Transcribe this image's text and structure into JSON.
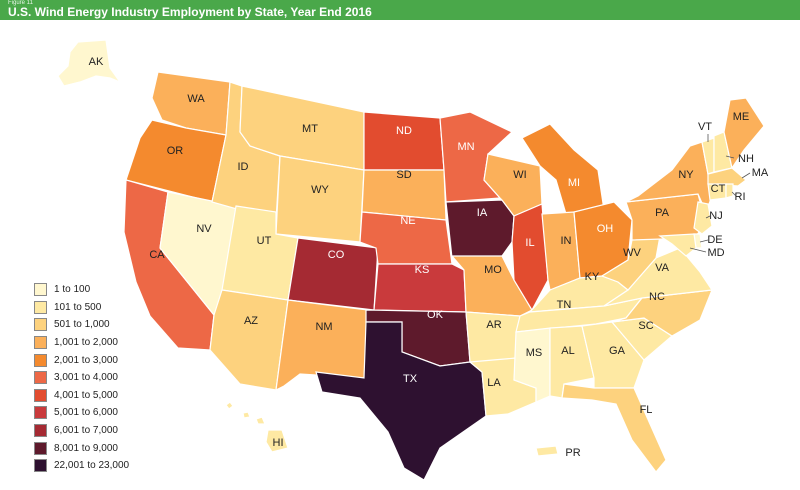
{
  "header": {
    "figure_label": "Figure 11",
    "title": "U.S. Wind Energy Industry Employment by State, Year End 2016"
  },
  "colors": {
    "header_bg": "#4aa84a",
    "background": "#ffffff",
    "state_stroke": "#ffffff"
  },
  "legend": [
    {
      "label": "1 to 100",
      "color": "#fff7cf"
    },
    {
      "label": "101 to 500",
      "color": "#fee9a3"
    },
    {
      "label": "501 to 1,000",
      "color": "#fdd27e"
    },
    {
      "label": "1,001 to 2,000",
      "color": "#fbb05a"
    },
    {
      "label": "2,001 to 3,000",
      "color": "#f48a2e"
    },
    {
      "label": "3,001 to 4,000",
      "color": "#ed6846"
    },
    {
      "label": "4,001 to 5,000",
      "color": "#e24c2f"
    },
    {
      "label": "5,001 to 6,000",
      "color": "#c93a3c"
    },
    {
      "label": "6,001 to 7,000",
      "color": "#a52a33"
    },
    {
      "label": "8,001 to 9,000",
      "color": "#5e1a2c"
    },
    {
      "label": "22,001 to 23,000",
      "color": "#2e1130"
    }
  ],
  "states": {
    "AK": {
      "label": "AK",
      "bin": 0
    },
    "WA": {
      "label": "WA",
      "bin": 3
    },
    "OR": {
      "label": "OR",
      "bin": 4
    },
    "CA": {
      "label": "CA",
      "bin": 5
    },
    "NV": {
      "label": "NV",
      "bin": 0
    },
    "ID": {
      "label": "ID",
      "bin": 2
    },
    "MT": {
      "label": "MT",
      "bin": 2
    },
    "WY": {
      "label": "WY",
      "bin": 2
    },
    "UT": {
      "label": "UT",
      "bin": 1
    },
    "AZ": {
      "label": "AZ",
      "bin": 2
    },
    "CO": {
      "label": "CO",
      "bin": 8
    },
    "NM": {
      "label": "NM",
      "bin": 3
    },
    "ND": {
      "label": "ND",
      "bin": 6
    },
    "SD": {
      "label": "SD",
      "bin": 3
    },
    "NE": {
      "label": "NE",
      "bin": 5
    },
    "KS": {
      "label": "KS",
      "bin": 7
    },
    "OK": {
      "label": "OK",
      "bin": 9
    },
    "TX": {
      "label": "TX",
      "bin": 10
    },
    "MN": {
      "label": "MN",
      "bin": 5
    },
    "IA": {
      "label": "IA",
      "bin": 9
    },
    "MO": {
      "label": "MO",
      "bin": 3
    },
    "AR": {
      "label": "AR",
      "bin": 1
    },
    "LA": {
      "label": "LA",
      "bin": 1
    },
    "WI": {
      "label": "WI",
      "bin": 3
    },
    "IL": {
      "label": "IL",
      "bin": 6
    },
    "MI": {
      "label": "MI",
      "bin": 4
    },
    "IN": {
      "label": "IN",
      "bin": 3
    },
    "OH": {
      "label": "OH",
      "bin": 4
    },
    "KY": {
      "label": "KY",
      "bin": 1
    },
    "TN": {
      "label": "TN",
      "bin": 1
    },
    "MS": {
      "label": "MS",
      "bin": 0
    },
    "AL": {
      "label": "AL",
      "bin": 1
    },
    "GA": {
      "label": "GA",
      "bin": 1
    },
    "FL": {
      "label": "FL",
      "bin": 2
    },
    "SC": {
      "label": "SC",
      "bin": 1
    },
    "NC": {
      "label": "NC",
      "bin": 2
    },
    "VA": {
      "label": "VA",
      "bin": 1
    },
    "WV": {
      "label": "WV",
      "bin": 2
    },
    "PA": {
      "label": "PA",
      "bin": 3
    },
    "NY": {
      "label": "NY",
      "bin": 3
    },
    "VT": {
      "label": "VT",
      "bin": 1
    },
    "NH": {
      "label": "NH",
      "bin": 1
    },
    "ME": {
      "label": "ME",
      "bin": 3
    },
    "MA": {
      "label": "MA",
      "bin": 2
    },
    "CT": {
      "label": "CT",
      "bin": 1
    },
    "RI": {
      "label": "RI",
      "bin": 1
    },
    "NJ": {
      "label": "NJ",
      "bin": 1
    },
    "DE": {
      "label": "DE",
      "bin": 0
    },
    "MD": {
      "label": "MD",
      "bin": 1
    },
    "HI": {
      "label": "HI",
      "bin": 1
    },
    "PR": {
      "label": "PR",
      "bin": 1
    }
  }
}
